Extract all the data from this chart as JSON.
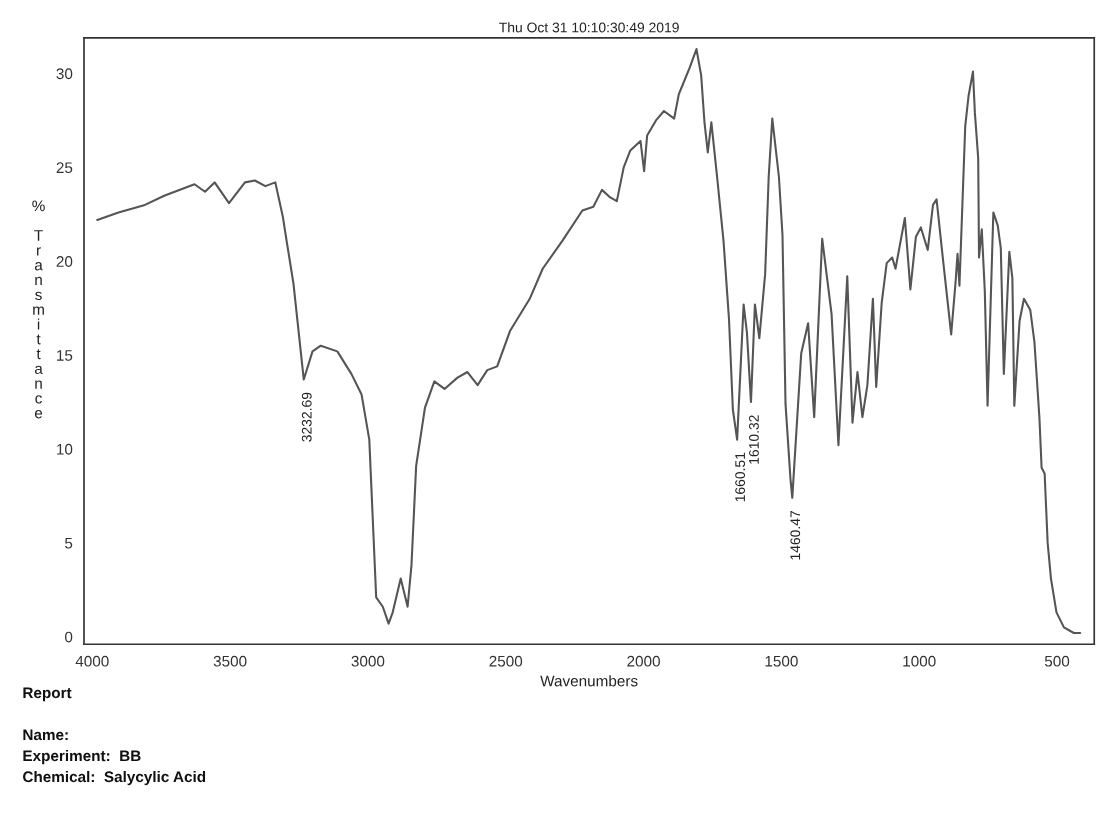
{
  "chart_data": {
    "type": "line",
    "title": "Thu Oct 31 10:10:30:49 2019",
    "xlabel": "Wavenumbers",
    "ylabel": "% Transmittance",
    "xlim": [
      4030,
      365
    ],
    "xticks": [
      4000,
      3500,
      3000,
      2500,
      2000,
      1500,
      1000,
      500
    ],
    "ylim": [
      -0.4,
      31.9
    ],
    "yticks": [
      0,
      5,
      10,
      15,
      20,
      25,
      30
    ],
    "line_style": "solid",
    "x": [
      3982,
      3905,
      3809,
      3737,
      3665,
      3629,
      3591,
      3556,
      3504,
      3446,
      3410,
      3372,
      3336,
      3309,
      3294,
      3270,
      3232.69,
      3201,
      3171,
      3111,
      3060,
      3023,
      2995,
      2970,
      2946,
      2925,
      2910,
      2881,
      2856,
      2842,
      2825,
      2793,
      2759,
      2722,
      2675,
      2639,
      2602,
      2567,
      2531,
      2484,
      2413,
      2366,
      2294,
      2222,
      2182,
      2151,
      2121,
      2097,
      2072,
      2048,
      2011,
      1998,
      1987,
      1955,
      1926,
      1889,
      1872,
      1858,
      1833,
      1808,
      1791,
      1779,
      1767,
      1754,
      1734,
      1710,
      1690,
      1676,
      1660.51,
      1637,
      1625,
      1610.32,
      1596,
      1580,
      1559,
      1546,
      1533,
      1509,
      1496,
      1485,
      1467,
      1460.47,
      1428,
      1403,
      1381,
      1352,
      1318,
      1293,
      1261,
      1242,
      1224,
      1206,
      1188,
      1168,
      1156,
      1136,
      1118,
      1098,
      1086,
      1052,
      1032,
      1012,
      994,
      969,
      950,
      937,
      916,
      884,
      868,
      861,
      854,
      833,
      821,
      805,
      798,
      786,
      783,
      773,
      762,
      752,
      731,
      715,
      704,
      693,
      673,
      662,
      655,
      636,
      620,
      597,
      582,
      564,
      556,
      545,
      534,
      522,
      502,
      475,
      439,
      416
    ],
    "series": [
      {
        "color": "#555555",
        "values": [
          22.2,
          22.6,
          23.0,
          23.5,
          23.9,
          24.1,
          23.7,
          24.2,
          23.1,
          24.2,
          24.3,
          24.0,
          24.2,
          22.4,
          21.0,
          18.8,
          13.7,
          15.2,
          15.5,
          15.2,
          14.0,
          12.9,
          10.5,
          2.1,
          1.6,
          0.7,
          1.3,
          3.1,
          1.6,
          3.8,
          9.1,
          12.2,
          13.6,
          13.2,
          13.8,
          14.1,
          13.4,
          14.2,
          14.4,
          16.3,
          18.0,
          19.6,
          21.1,
          22.7,
          22.9,
          23.8,
          23.4,
          23.2,
          25.0,
          25.9,
          26.4,
          24.8,
          26.7,
          27.5,
          28.0,
          27.6,
          28.9,
          29.4,
          30.3,
          31.3,
          29.9,
          27.4,
          25.8,
          27.4,
          24.6,
          21.1,
          16.9,
          12.1,
          10.5,
          17.7,
          16.2,
          12.5,
          17.7,
          15.9,
          19.3,
          24.5,
          27.6,
          24.5,
          21.4,
          12.4,
          8.4,
          7.4,
          15.1,
          16.7,
          11.7,
          21.2,
          17.2,
          10.2,
          19.2,
          11.4,
          14.1,
          11.7,
          13.4,
          18.0,
          13.3,
          17.8,
          19.9,
          20.2,
          19.6,
          22.3,
          18.5,
          21.3,
          21.8,
          20.6,
          23.0,
          23.3,
          20.4,
          16.1,
          18.9,
          20.4,
          18.7,
          27.2,
          28.8,
          30.1,
          27.9,
          25.5,
          20.2,
          21.7,
          18.4,
          12.3,
          22.6,
          21.9,
          20.7,
          14.0,
          20.5,
          19.1,
          12.3,
          16.8,
          18.0,
          17.4,
          15.7,
          11.7,
          9.0,
          8.7,
          5.0,
          3.1,
          1.3,
          0.5,
          0.2,
          0.2
        ]
      }
    ],
    "annotations": [
      {
        "text": "3232.69",
        "x": 3232.69,
        "y": 13.7
      },
      {
        "text": "1660.51",
        "x": 1660.51,
        "y": 10.5
      },
      {
        "text": "1610.32",
        "x": 1610.32,
        "y": 12.5
      },
      {
        "text": "1460.47",
        "x": 1460.47,
        "y": 7.4
      },
      "Report",
      "Name:",
      "Experiment:  BB",
      "Chemical:  Salycylic Acid"
    ]
  }
}
